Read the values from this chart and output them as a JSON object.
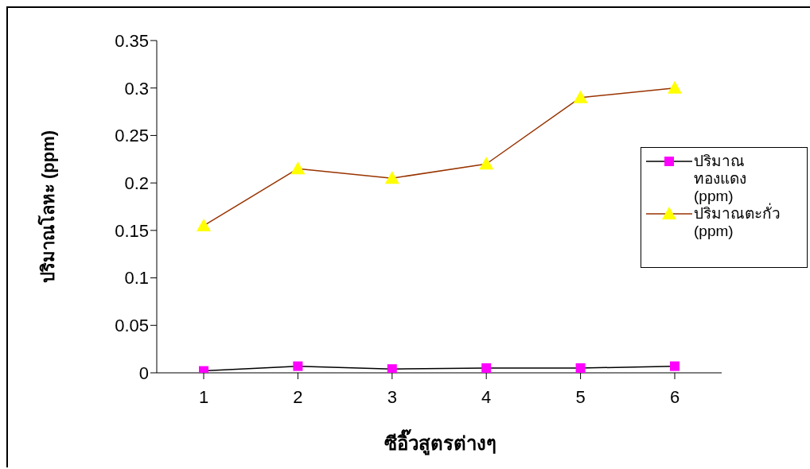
{
  "chart_data": {
    "type": "line",
    "xlabel": "ซีอิ๊วสูตรต่างๆ",
    "ylabel": "ปริมาณโลหะ (ppm)",
    "categories": [
      "1",
      "2",
      "3",
      "4",
      "5",
      "6"
    ],
    "series": [
      {
        "name": "ปริมาณทองแดง (ppm)",
        "color": "#000000",
        "colors": [
          "#ff00ff",
          "#ff00ff",
          "#ff00ff",
          "#ff00ff",
          "#ff00ff",
          "#ff00ff"
        ],
        "marker": "square",
        "values": [
          0.002,
          0.007,
          0.004,
          0.005,
          0.005,
          0.007
        ]
      },
      {
        "name": "ปริมาณตะกั่ว (ppm)",
        "color": "#993300",
        "colors": [
          "#ffff00",
          "#ffff00",
          "#ffff00",
          "#ffff00",
          "#ffff00",
          "#ffff00"
        ],
        "marker": "triangle",
        "values": [
          0.155,
          0.215,
          0.205,
          0.22,
          0.29,
          0.3
        ]
      }
    ],
    "ylim": [
      0,
      0.35
    ],
    "yticks": [
      0,
      0.05,
      0.1,
      0.15,
      0.2,
      0.25,
      0.3,
      0.35
    ],
    "grid": false,
    "legend": "right"
  }
}
